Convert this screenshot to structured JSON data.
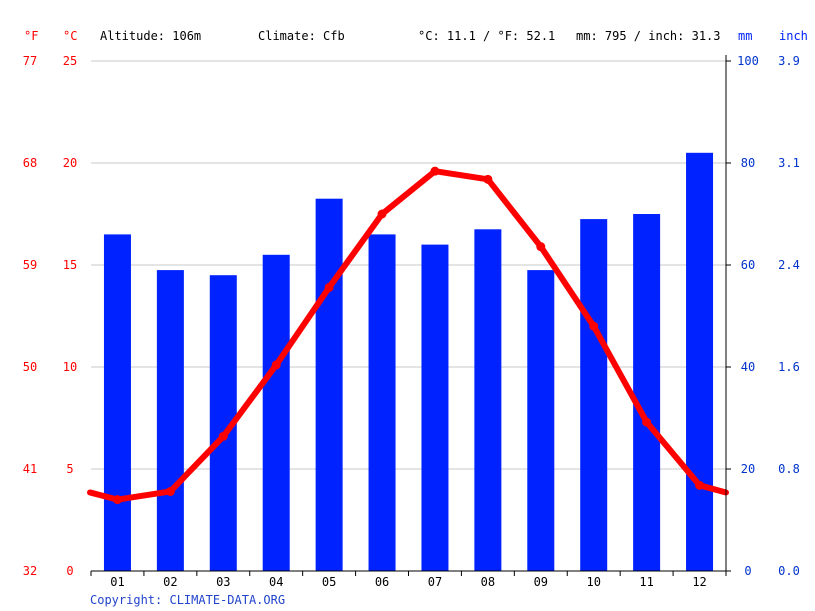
{
  "header": {
    "unit_f": "°F",
    "unit_c": "°C",
    "altitude": "Altitude: 106m",
    "climate": "Climate: Cfb",
    "temp_avg": "°C: 11.1 / °F: 52.1",
    "precip_total": "mm: 795 / inch: 31.3",
    "unit_mm": "mm",
    "unit_inch": "inch"
  },
  "copyright": "Copyright: CLIMATE-DATA.ORG",
  "colors": {
    "temp": "#ff0000",
    "precip": "#0022ff",
    "axis_left": "#ff0000",
    "axis_right": "#0033cc",
    "grid": "#c8c8c8"
  },
  "chart_data": {
    "type": "bar",
    "categories": [
      "01",
      "02",
      "03",
      "04",
      "05",
      "06",
      "07",
      "08",
      "09",
      "10",
      "11",
      "12"
    ],
    "series": [
      {
        "type": "bar",
        "axis": "right",
        "values": [
          66,
          59,
          58,
          62,
          73,
          66,
          64,
          67,
          59,
          69,
          70,
          82
        ]
      },
      {
        "type": "line",
        "axis": "left",
        "values": [
          3.5,
          3.9,
          6.6,
          10.1,
          13.9,
          17.5,
          19.6,
          19.2,
          15.9,
          12.0,
          7.3,
          4.2
        ]
      }
    ],
    "y_left": {
      "ticks": [
        0,
        5,
        10,
        15,
        20,
        25
      ],
      "range": [
        0,
        25
      ]
    },
    "y_left_f": {
      "ticks": [
        32,
        41,
        50,
        59,
        68,
        77
      ]
    },
    "y_right": {
      "ticks": [
        0,
        20,
        40,
        60,
        80,
        100
      ],
      "range": [
        0,
        100
      ]
    },
    "y_right_inch": {
      "ticks": [
        "0.0",
        "0.8",
        "1.6",
        "2.4",
        "3.1",
        "3.9"
      ]
    },
    "grid": true
  }
}
